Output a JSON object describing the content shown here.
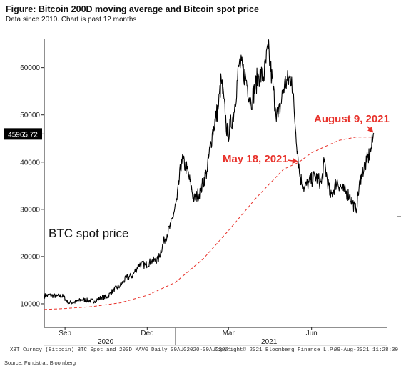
{
  "figure": {
    "title": "Figure: Bitcoin 200D moving average and Bitcoin spot price",
    "subtitle": "Data since 2010.  Chart is past 12 months"
  },
  "chart_data": {
    "type": "line",
    "ylim": [
      5000,
      66000
    ],
    "xlim": [
      "2020-08-09",
      "2021-08-24"
    ],
    "yticks": [
      10000,
      20000,
      30000,
      40000,
      50000,
      60000
    ],
    "ytick_labels": [
      "10000",
      "20000",
      "30000",
      "40000",
      "50000",
      "60000"
    ],
    "xticks": [
      {
        "label": "Sep",
        "date": "2020-09-01"
      },
      {
        "label": "Dec",
        "date": "2020-12-01"
      },
      {
        "label": "Mar",
        "date": "2021-03-01"
      },
      {
        "label": "Jun",
        "date": "2021-06-01"
      }
    ],
    "year_labels": [
      {
        "label": "2020",
        "date": "2020-10-16"
      },
      {
        "label": "2021",
        "date": "2021-04-15"
      }
    ],
    "year_divider_date": "2021-01-01",
    "grid": false,
    "legend": "none",
    "last_value_label": "45965.72",
    "series": [
      {
        "name": "BTC spot price",
        "color": "#000000",
        "style": "solid",
        "points": [
          [
            "2020-08-09",
            11700
          ],
          [
            "2020-08-16",
            11800
          ],
          [
            "2020-08-23",
            11650
          ],
          [
            "2020-08-30",
            11600
          ],
          [
            "2020-09-05",
            10200
          ],
          [
            "2020-09-13",
            10400
          ],
          [
            "2020-09-20",
            10900
          ],
          [
            "2020-09-27",
            10700
          ],
          [
            "2020-10-04",
            10600
          ],
          [
            "2020-10-11",
            11300
          ],
          [
            "2020-10-18",
            11500
          ],
          [
            "2020-10-25",
            13000
          ],
          [
            "2020-11-01",
            13800
          ],
          [
            "2020-11-08",
            15500
          ],
          [
            "2020-11-15",
            16000
          ],
          [
            "2020-11-22",
            18400
          ],
          [
            "2020-11-29",
            18200
          ],
          [
            "2020-12-06",
            19000
          ],
          [
            "2020-12-13",
            19300
          ],
          [
            "2020-12-20",
            23500
          ],
          [
            "2020-12-27",
            26500
          ],
          [
            "2021-01-03",
            32000
          ],
          [
            "2021-01-08",
            40500
          ],
          [
            "2021-01-14",
            38500
          ],
          [
            "2021-01-22",
            32000
          ],
          [
            "2021-01-29",
            34000
          ],
          [
            "2021-02-05",
            38000
          ],
          [
            "2021-02-11",
            46000
          ],
          [
            "2021-02-18",
            52000
          ],
          [
            "2021-02-21",
            57500
          ],
          [
            "2021-02-28",
            45500
          ],
          [
            "2021-03-07",
            50500
          ],
          [
            "2021-03-13",
            61000
          ],
          [
            "2021-03-20",
            58000
          ],
          [
            "2021-03-26",
            52500
          ],
          [
            "2021-04-03",
            58500
          ],
          [
            "2021-04-09",
            58000
          ],
          [
            "2021-04-14",
            64000
          ],
          [
            "2021-04-22",
            51500
          ],
          [
            "2021-04-25",
            49500
          ],
          [
            "2021-05-02",
            56500
          ],
          [
            "2021-05-10",
            58000
          ],
          [
            "2021-05-13",
            50000
          ],
          [
            "2021-05-19",
            37000
          ],
          [
            "2021-05-24",
            34500
          ],
          [
            "2021-05-29",
            35700
          ],
          [
            "2021-06-05",
            37000
          ],
          [
            "2021-06-12",
            35500
          ],
          [
            "2021-06-15",
            40000
          ],
          [
            "2021-06-22",
            32500
          ],
          [
            "2021-06-29",
            36000
          ],
          [
            "2021-07-06",
            34000
          ],
          [
            "2021-07-13",
            33000
          ],
          [
            "2021-07-20",
            29800
          ],
          [
            "2021-07-26",
            37500
          ],
          [
            "2021-08-01",
            40000
          ],
          [
            "2021-08-06",
            42800
          ],
          [
            "2021-08-09",
            45965.72
          ]
        ]
      },
      {
        "name": "200D MAVG",
        "color": "#e8322b",
        "style": "dashed",
        "points": [
          [
            "2020-08-09",
            8800
          ],
          [
            "2020-09-01",
            9000
          ],
          [
            "2020-10-01",
            9400
          ],
          [
            "2020-11-01",
            10200
          ],
          [
            "2020-12-01",
            11800
          ],
          [
            "2021-01-01",
            14500
          ],
          [
            "2021-02-01",
            19500
          ],
          [
            "2021-03-01",
            25500
          ],
          [
            "2021-04-01",
            32500
          ],
          [
            "2021-05-01",
            38500
          ],
          [
            "2021-05-18",
            40000
          ],
          [
            "2021-06-01",
            42000
          ],
          [
            "2021-07-01",
            44600
          ],
          [
            "2021-07-20",
            45300
          ],
          [
            "2021-08-09",
            45300
          ]
        ]
      }
    ],
    "annotations": [
      {
        "text": "BTC spot price",
        "color": "#111111"
      },
      {
        "text": "May 18, 2021",
        "color": "#e8322b",
        "date": "2021-05-18",
        "value": 40000
      },
      {
        "text": "August 9, 2021",
        "color": "#e8322b",
        "date": "2021-08-09",
        "value": 46000
      }
    ]
  },
  "footer": {
    "left": "XBT Curncy (Bitcoin) BTC Spot and 200D MAVG  Daily 09AUG2020-09AUG2021",
    "center": "Copyright© 2021 Bloomberg Finance L.P.",
    "right": "09-Aug-2021 11:28:30",
    "source": "Source: Fundstrat, Bloomberg"
  }
}
